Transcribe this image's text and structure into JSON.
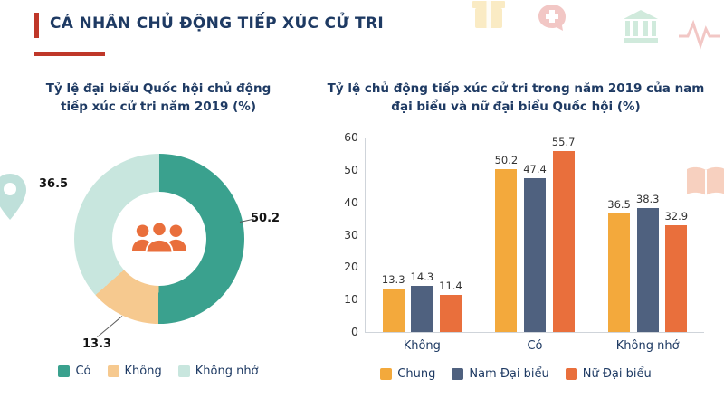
{
  "page": {
    "title": "CÁ NHÂN CHỦ ĐỘNG TIẾP XÚC CỬ TRI",
    "accent_red": "#BF3729",
    "title_navy": "#1E3A63"
  },
  "chart_data": [
    {
      "type": "pie",
      "donut": true,
      "title": "Tỷ lệ đại biểu Quốc hội chủ động tiếp xúc cử tri năm 2019 (%)",
      "labels": [
        "Có",
        "Không",
        "Không nhớ"
      ],
      "values": [
        50.2,
        13.3,
        36.5
      ],
      "colors": [
        "#3AA18E",
        "#F6C98F",
        "#C8E6DE"
      ],
      "legend_position": "bottom",
      "center_icon": "people-group-icon"
    },
    {
      "type": "bar",
      "title": "Tỷ lệ chủ động tiếp xúc cử tri trong năm 2019 của nam đại biểu và nữ đại biểu Quốc hội (%)",
      "categories": [
        "Không",
        "Có",
        "Không nhớ"
      ],
      "series": [
        {
          "name": "Chung",
          "color": "#F3A93C",
          "values": [
            13.3,
            50.2,
            36.5
          ]
        },
        {
          "name": "Nam Đại biểu",
          "color": "#4F617F",
          "values": [
            14.3,
            47.4,
            38.3
          ]
        },
        {
          "name": "Nữ Đại biểu",
          "color": "#E96F3C",
          "values": [
            11.4,
            55.7,
            32.9
          ]
        }
      ],
      "ylim": [
        0,
        60
      ],
      "yticks": [
        0,
        10,
        20,
        30,
        40,
        50,
        60
      ],
      "grid": false,
      "legend_position": "bottom"
    }
  ],
  "decorative_icons": [
    "gift-icon",
    "medical-chat-icon",
    "bank-icon",
    "pulse-icon",
    "location-pin-icon",
    "open-book-icon"
  ]
}
